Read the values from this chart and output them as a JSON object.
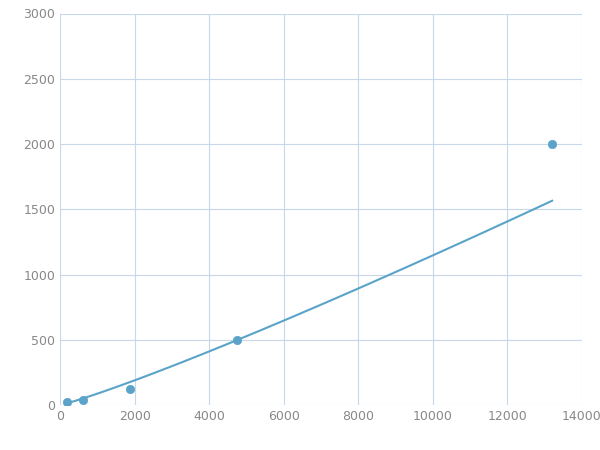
{
  "x_points": [
    200,
    625,
    1875,
    4750,
    13200
  ],
  "y_points": [
    20,
    40,
    125,
    500,
    2000
  ],
  "line_color": "#5ba3c9",
  "marker_color": "#5ba3c9",
  "marker_size": 6,
  "line_width": 1.5,
  "xlim": [
    0,
    14000
  ],
  "ylim": [
    0,
    3000
  ],
  "xticks": [
    0,
    2000,
    4000,
    6000,
    8000,
    10000,
    12000,
    14000
  ],
  "yticks": [
    0,
    500,
    1000,
    1500,
    2000,
    2500,
    3000
  ],
  "grid_color": "#c8d8e8",
  "background_color": "#ffffff",
  "figure_bg": "#ffffff",
  "tick_label_color": "#888888",
  "tick_label_size": 9
}
